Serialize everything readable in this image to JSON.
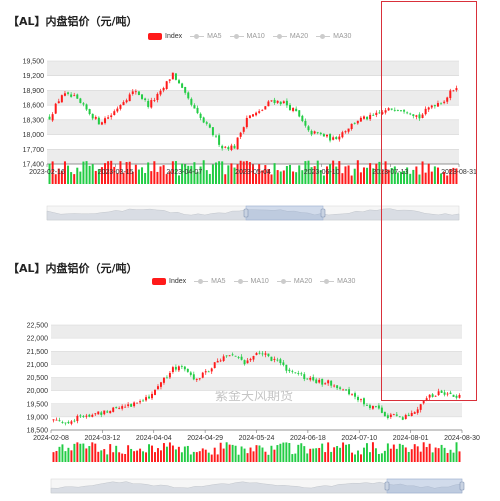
{
  "colors": {
    "up": "#ff1a1a",
    "down": "#22cc44",
    "highlight": "#d9303a"
  },
  "charts": [
    {
      "title": "【AL】内盘铝价（元/吨）",
      "legend": {
        "items": [
          "Index",
          "MA5",
          "MA10",
          "MA20",
          "MA30"
        ],
        "active": "Index"
      },
      "chart_data": {
        "type": "candlestick",
        "ylim": [
          17400,
          19500
        ],
        "yticks": [
          "19,500",
          "19,200",
          "18,900",
          "18,600",
          "18,300",
          "18,000",
          "17,700",
          "17,400"
        ],
        "xticks": [
          "2023-02-16",
          "2023-03-15",
          "2023-04-07",
          "2023-05-04",
          "2023-06-10",
          "2023-07-13",
          "2023-08-31"
        ],
        "grid": true,
        "anchors": [
          18350,
          18820,
          18750,
          18500,
          18250,
          18400,
          18700,
          18900,
          18600,
          18850,
          19250,
          18800,
          18400,
          18100,
          17750,
          17750,
          18350,
          18450,
          18700,
          18650,
          18450,
          18050,
          18000,
          17900,
          18100,
          18300,
          18350,
          18450,
          18550,
          18500,
          18350,
          18600,
          18700,
          19000
        ]
      }
    },
    {
      "title": "【AL】内盘铝价（元/吨）",
      "legend": {
        "items": [
          "Index",
          "MA5",
          "MA10",
          "MA20",
          "MA30"
        ],
        "active": "Index"
      },
      "watermark": "紫金天风期货",
      "chart_data": {
        "type": "candlestick",
        "ylim": [
          18500,
          22500
        ],
        "yticks": [
          "22,500",
          "22,000",
          "21,500",
          "21,000",
          "20,500",
          "20,000",
          "19,500",
          "19,000",
          "18,500"
        ],
        "xticks": [
          "2024-02-08",
          "2024-03-12",
          "2024-04-04",
          "2024-04-29",
          "2024-05-24",
          "2024-06-18",
          "2024-07-10",
          "2024-08-01",
          "2024-08-30"
        ],
        "grid": true,
        "anchors": [
          18900,
          18800,
          18950,
          19050,
          19150,
          19350,
          19450,
          19500,
          19800,
          20300,
          20800,
          20900,
          20400,
          20800,
          21200,
          21400,
          21000,
          21500,
          21300,
          21000,
          20700,
          20500,
          20300,
          20350,
          20100,
          19800,
          19500,
          19300,
          19050,
          18950,
          19100,
          19600,
          19900,
          19950,
          19750
        ]
      }
    }
  ]
}
